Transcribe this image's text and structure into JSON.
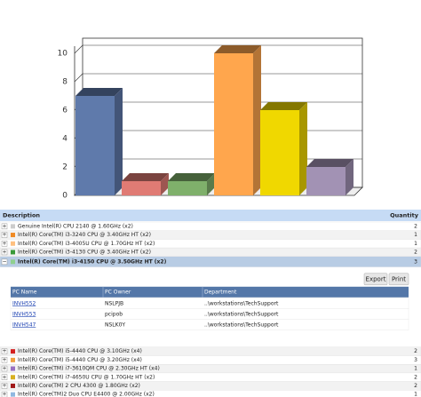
{
  "chart_data": {
    "type": "bar3d",
    "categories": [
      null,
      null,
      null,
      null,
      null,
      null
    ],
    "values": [
      7,
      1,
      1,
      10,
      6,
      2
    ],
    "colors": [
      "#5f7aab",
      "#e07b74",
      "#7fb06b",
      "#ffa64d",
      "#f0d800",
      "#a292b4"
    ],
    "ylim": [
      0,
      10
    ],
    "yticks": [
      0,
      2,
      4,
      6,
      8,
      10
    ],
    "grid": true
  },
  "table": {
    "columns": [
      "Description",
      "Quantity"
    ],
    "rows": [
      {
        "description": "Genuine Intel(R) CPU 2140 @ 1.60GHz (x2)",
        "quantity": "2",
        "color": "#cccccc"
      },
      {
        "description": "Intel(R) Core(TM) i3-3240 CPU @ 3.40GHz HT (x2)",
        "quantity": "1",
        "color": "#f08a24"
      },
      {
        "description": "Intel(R) Core(TM) i3-4005U CPU @ 1.70GHz HT (x2)",
        "quantity": "1",
        "color": "#ffc080"
      },
      {
        "description": "Intel(R) Core(TM) i3-4130 CPU @ 3.40GHz HT (x2)",
        "quantity": "2",
        "color": "#3a9a3a"
      },
      {
        "description": "Intel(R) Core(TM) i3-4150 CPU @ 3.50GHz HT (x2)",
        "quantity": "3",
        "color": "#8fd08f",
        "details": {
          "buttons": [
            "Export",
            "Print"
          ],
          "columns": [
            "PC Name",
            "PC Owner",
            "Department"
          ],
          "rows": [
            [
              "INVH552",
              "NSLPJB",
              "..\\workstations\\TechSupport"
            ],
            [
              "INVH553",
              "pcipob",
              "..\\workstations\\TechSupport"
            ],
            [
              "INVH547",
              "NSLK0Y",
              "..\\workstations\\TechSupport"
            ]
          ]
        }
      },
      {
        "description": "Intel(R) Core(TM) i5-4440 CPU @ 3.10GHz (x4)",
        "quantity": "2",
        "color": "#d42020"
      },
      {
        "description": "Intel(R) Core(TM) i5-4440 CPU @ 3.20GHz (x4)",
        "quantity": "3",
        "color": "#f0a040"
      },
      {
        "description": "Intel(R) Core(TM) i7-3610QM CPU @ 2.30GHz HT (x4)",
        "quantity": "1",
        "color": "#9a70c0"
      },
      {
        "description": "Intel(R) Core(TM) i7-4650U CPU @ 1.70GHz HT (x2)",
        "quantity": "2",
        "color": "#d8b020"
      },
      {
        "description": "Intel(R) Core(TM) 2 CPU 4300 @ 1.80GHz (x2)",
        "quantity": "2",
        "color": "#a01818"
      },
      {
        "description": "Intel(R) Core(TM)2 Duo CPU E4400 @ 2.00GHz (x2)",
        "quantity": "1",
        "color": "#90b8e0"
      }
    ]
  }
}
